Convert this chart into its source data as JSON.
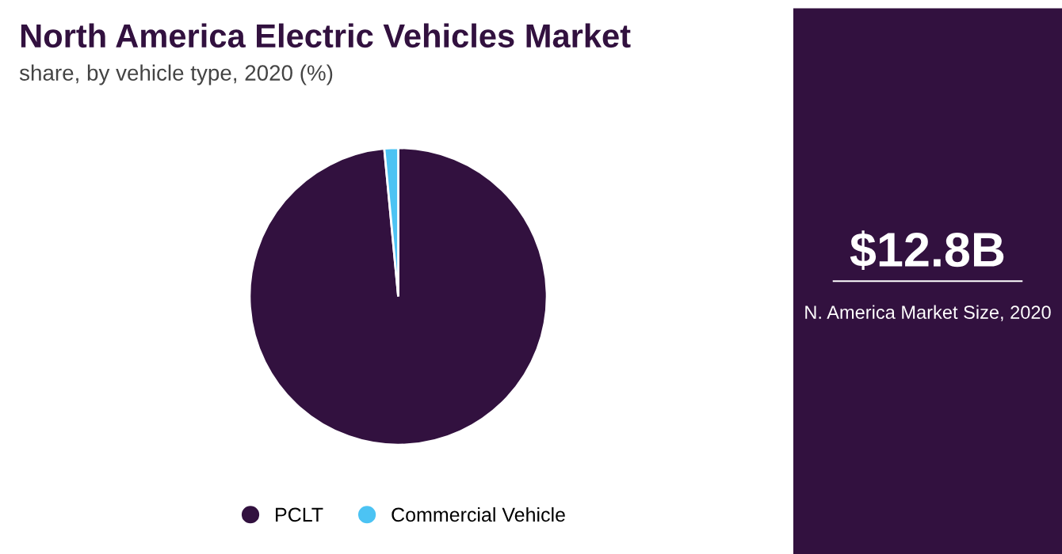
{
  "chart_data": [
    {
      "type": "pie",
      "title": "North America Electric Vehicles Market",
      "subtitle": "share, by vehicle type, 2020 (%)",
      "categories": [
        "PCLT",
        "Commercial Vehicle"
      ],
      "values": [
        98.5,
        1.5
      ],
      "colors": [
        "#32113f",
        "#4cc3f3"
      ],
      "legend": "bottom"
    },
    {
      "type": "other",
      "annotations": [
        "$12.8B",
        "N. America Market Size, 2020"
      ]
    }
  ]
}
